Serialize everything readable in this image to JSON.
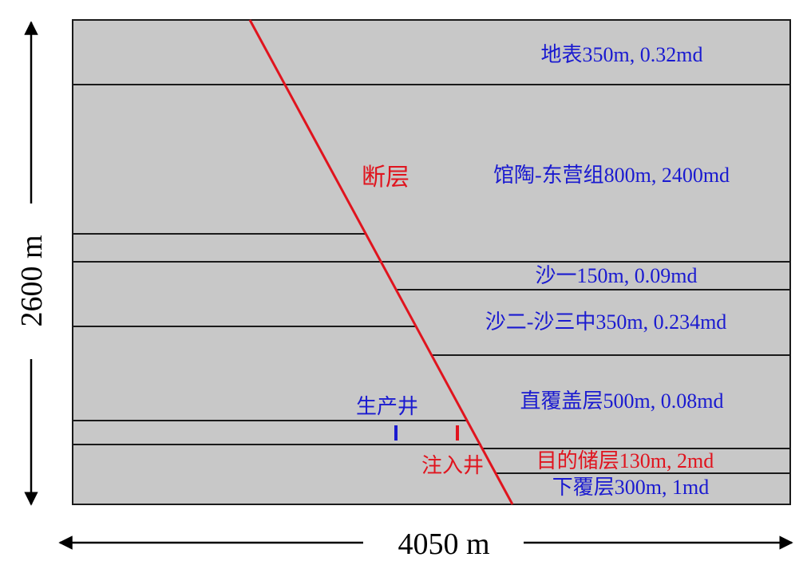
{
  "colors": {
    "rock": "#c8c8c8",
    "boundary": "#1a1a1a",
    "fault": "#e0141e",
    "blue_text": "#1a1ad0",
    "red_text": "#e0141e",
    "dimension": "#000000"
  },
  "layers": [
    {
      "label": "地表350m, 0.32md",
      "color": "blue"
    },
    {
      "label": "馆陶-东营组800m, 2400md",
      "color": "blue"
    },
    {
      "label": "沙一150m, 0.09md",
      "color": "blue"
    },
    {
      "label": "沙二-沙三中350m, 0.234md",
      "color": "blue"
    },
    {
      "label": "直覆盖层500m, 0.08md",
      "color": "blue"
    },
    {
      "label": "目的储层130m, 2md",
      "color": "red"
    },
    {
      "label": "下覆层300m, 1md",
      "color": "blue"
    }
  ],
  "fault": {
    "label": "断层"
  },
  "wells": {
    "production": {
      "label": "生产井",
      "color": "blue"
    },
    "injection": {
      "label": "注入井",
      "color": "red"
    }
  },
  "dimensions": {
    "width": "4050 m",
    "height": "2600 m"
  }
}
